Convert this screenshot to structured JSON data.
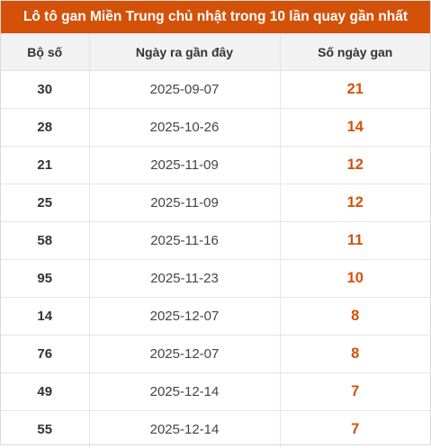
{
  "title": "Lô tô gan Miền Trung chủ nhật trong 10 lần quay gần nhất",
  "headers": {
    "number": "Bộ số",
    "date": "Ngày ra gần đây",
    "days": "Số ngày gan"
  },
  "rows": [
    {
      "number": "30",
      "date": "2025-09-07",
      "days": "21"
    },
    {
      "number": "28",
      "date": "2025-10-26",
      "days": "14"
    },
    {
      "number": "21",
      "date": "2025-11-09",
      "days": "12"
    },
    {
      "number": "25",
      "date": "2025-11-09",
      "days": "12"
    },
    {
      "number": "58",
      "date": "2025-11-16",
      "days": "11"
    },
    {
      "number": "95",
      "date": "2025-11-23",
      "days": "10"
    },
    {
      "number": "14",
      "date": "2025-12-07",
      "days": "8"
    },
    {
      "number": "76",
      "date": "2025-12-07",
      "days": "8"
    },
    {
      "number": "49",
      "date": "2025-12-14",
      "days": "7"
    },
    {
      "number": "55",
      "date": "2025-12-14",
      "days": "7"
    }
  ],
  "colors": {
    "accent": "#d4510a",
    "header_bg": "#f2f2f2",
    "text": "#333333"
  }
}
